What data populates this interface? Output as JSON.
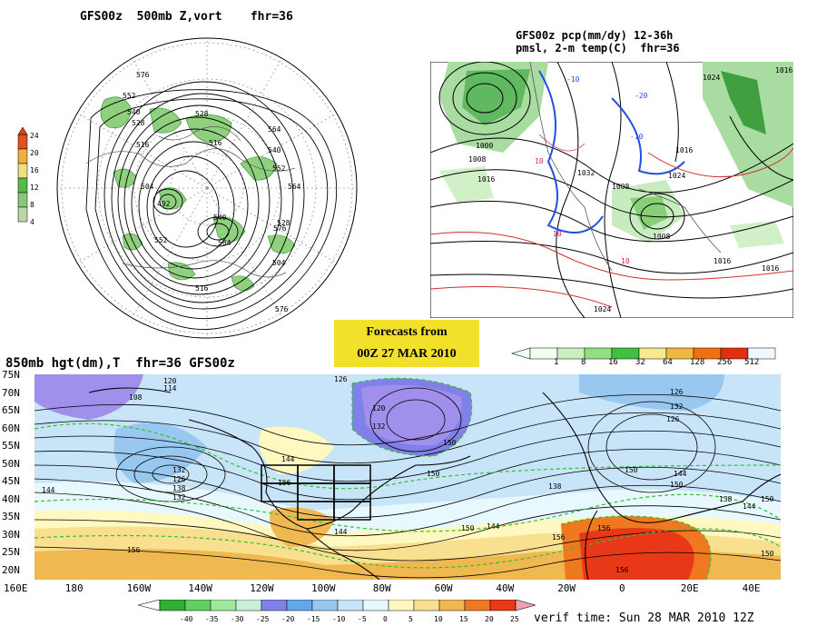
{
  "top_left": {
    "title": "GFS00z  500mb Z,vort    fhr=36",
    "legend_ticks": [
      "24",
      "20",
      "16",
      "12",
      "8",
      "4"
    ],
    "legend_colors": [
      "#d8e8d0",
      "#b8d8a8",
      "#88c878",
      "#58b848",
      "#f0e080",
      "#f0b040",
      "#e05020"
    ],
    "contour_labels": [
      "576",
      "552",
      "540",
      "528",
      "516",
      "504",
      "492",
      "564",
      "528",
      "516",
      "540",
      "552",
      "564",
      "576",
      "528",
      "540",
      "552",
      "564",
      "516",
      "504",
      "576"
    ]
  },
  "top_right": {
    "title_line1": "GFS00z pcp(mm/dy) 12-36h",
    "title_line2": "pmsl, 2-m temp(C)  fhr=36",
    "pressure_labels": [
      "1016",
      "1024",
      "1000",
      "1008",
      "1016",
      "1032",
      "1008",
      "1008",
      "1016",
      "1024",
      "1016",
      "1016",
      "1024"
    ],
    "temp_labels": [
      "-10",
      "-20",
      "10",
      "-10",
      "10",
      "10"
    ]
  },
  "forecast_badge": {
    "line1": "Forecasts from",
    "line2": "00Z 27 MAR 2010"
  },
  "precip_colorbar": {
    "ticks": [
      "1",
      "8",
      "16",
      "32",
      "64",
      "128",
      "256",
      "512"
    ],
    "colors": [
      "#f0fff0",
      "#c8f0c0",
      "#90e080",
      "#40c040",
      "#f8e890",
      "#f0b840",
      "#f07010",
      "#e03010",
      "#f0f8ff"
    ]
  },
  "bottom": {
    "title": "850mb hgt(dm),T  fhr=36 GFS00z",
    "lat_labels": [
      "75N",
      "70N",
      "65N",
      "60N",
      "55N",
      "50N",
      "45N",
      "40N",
      "35N",
      "30N",
      "25N",
      "20N"
    ],
    "lon_labels": [
      "160E",
      "180",
      "160W",
      "140W",
      "120W",
      "100W",
      "80W",
      "60W",
      "40W",
      "20W",
      "0",
      "20E",
      "40E"
    ],
    "height_labels": [
      "120",
      "114",
      "108",
      "126",
      "120",
      "132",
      "126",
      "132",
      "126",
      "150",
      "144",
      "150",
      "156",
      "144",
      "150",
      "138",
      "132",
      "126",
      "138",
      "132",
      "144",
      "156",
      "144",
      "150",
      "144",
      "156",
      "156",
      "150",
      "156",
      "150",
      "138",
      "144",
      "150"
    ],
    "colorbar_ticks": [
      "-40",
      "-35",
      "-30",
      "-25",
      "-20",
      "-15",
      "-10",
      "-5",
      "0",
      "5",
      "10",
      "15",
      "20",
      "25"
    ],
    "colorbar_colors": [
      "#30b030",
      "#60d060",
      "#a0e8a0",
      "#c8f0d8",
      "#8080e8",
      "#60a8e8",
      "#98c8f0",
      "#c8e4f8",
      "#e8f8ff",
      "#fff8c0",
      "#f8e090",
      "#f0b850",
      "#f07820",
      "#e83818"
    ]
  },
  "verif_time": "verif time: Sun 28 MAR 2010 12Z"
}
